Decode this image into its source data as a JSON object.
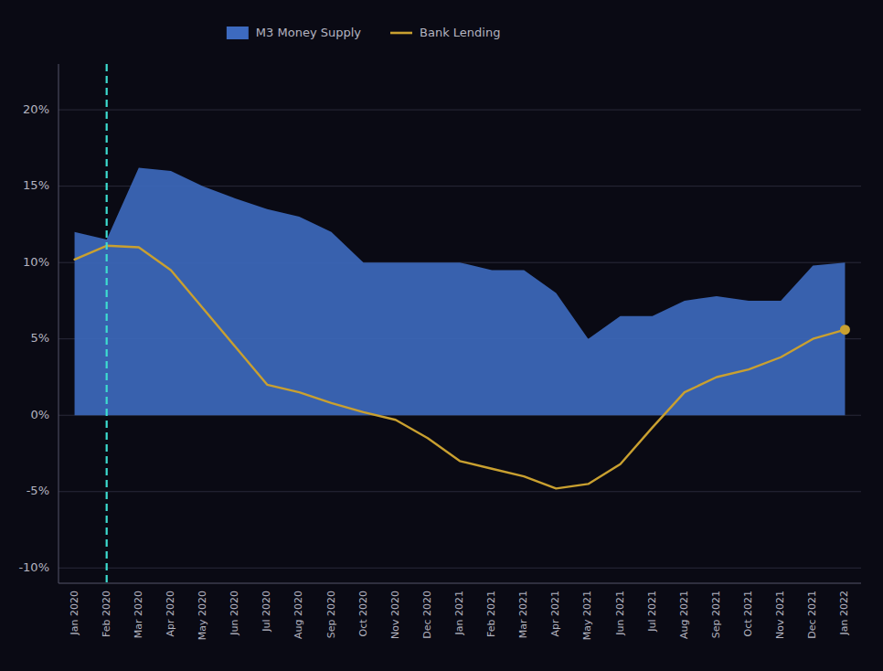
{
  "chart_data": {
    "type": "line",
    "categories": [
      "Jan 2020",
      "Feb 2020",
      "Mar 2020",
      "Apr 2020",
      "May 2020",
      "Jun 2020",
      "Jul 2020",
      "Aug 2020",
      "Sep 2020",
      "Oct 2020",
      "Nov 2020",
      "Dec 2020",
      "Jan 2021",
      "Feb 2021",
      "Mar 2021",
      "Apr 2021",
      "May 2021",
      "Jun 2021",
      "Jul 2021",
      "Aug 2021",
      "Sep 2021",
      "Oct 2021",
      "Nov 2021",
      "Dec 2021",
      "Jan 2022"
    ],
    "series": [
      {
        "name": "M3 Money Supply",
        "type": "area",
        "color": "#3d6abf",
        "values": [
          12.0,
          11.5,
          16.2,
          16.0,
          15.0,
          14.2,
          13.5,
          13.0,
          12.0,
          10.0,
          10.0,
          10.0,
          10.0,
          9.5,
          9.5,
          8.0,
          5.0,
          6.5,
          6.5,
          7.5,
          7.8,
          7.5,
          7.5,
          9.8,
          10.0
        ]
      },
      {
        "name": "Bank Lending",
        "type": "line",
        "color": "#c9a030",
        "marker": "end-dot",
        "values": [
          10.2,
          11.1,
          11.0,
          9.5,
          7.0,
          4.5,
          2.0,
          1.5,
          0.8,
          0.2,
          -0.3,
          -1.5,
          -3.0,
          -3.5,
          -4.0,
          -4.8,
          -4.5,
          -3.2,
          -0.8,
          1.5,
          2.5,
          3.0,
          3.8,
          5.0,
          5.6
        ]
      }
    ],
    "annotations": [
      {
        "type": "vline",
        "x": "Feb 2020",
        "color": "#3dddd0",
        "line_style": "dashed"
      }
    ],
    "ylim": [
      -11,
      23
    ],
    "yticks": [
      {
        "value": -10,
        "label": "-10%"
      },
      {
        "value": -5,
        "label": "-5%"
      },
      {
        "value": 0,
        "label": "0%"
      },
      {
        "value": 5,
        "label": "5%"
      },
      {
        "value": 10,
        "label": "10%"
      },
      {
        "value": 15,
        "label": "15%"
      },
      {
        "value": 20,
        "label": "20%"
      }
    ],
    "grid": true,
    "legend": "top"
  }
}
